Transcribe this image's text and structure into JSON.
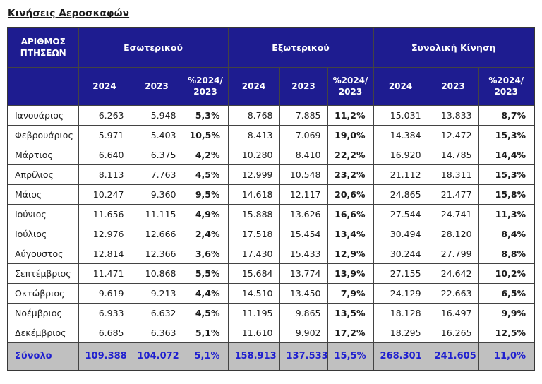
{
  "title": "Κινήσεις Αεροσκαφών",
  "colors": {
    "header_bg": "#1e1c90",
    "header_text": "#ffffff",
    "total_row_bg": "#c0c0c0",
    "total_row_text": "#2020cf",
    "border": "#434343"
  },
  "table": {
    "corner_label": "ΑΡΙΘΜΟΣ\nΠΤΗΣΕΩΝ",
    "groups": [
      "Εσωτερικού",
      "Εξωτερικού",
      "Συνολική Κίνηση"
    ],
    "sub_headers": [
      "2024",
      "2023",
      "%2024/\n2023"
    ],
    "rows": [
      {
        "month": "Ιανουάριος",
        "values": [
          "6.263",
          "5.948",
          "5,3%",
          "8.768",
          "7.885",
          "11,2%",
          "15.031",
          "13.833",
          "8,7%"
        ]
      },
      {
        "month": "Φεβρουάριος",
        "values": [
          "5.971",
          "5.403",
          "10,5%",
          "8.413",
          "7.069",
          "19,0%",
          "14.384",
          "12.472",
          "15,3%"
        ]
      },
      {
        "month": "Μάρτιος",
        "values": [
          "6.640",
          "6.375",
          "4,2%",
          "10.280",
          "8.410",
          "22,2%",
          "16.920",
          "14.785",
          "14,4%"
        ]
      },
      {
        "month": "Απρίλιος",
        "values": [
          "8.113",
          "7.763",
          "4,5%",
          "12.999",
          "10.548",
          "23,2%",
          "21.112",
          "18.311",
          "15,3%"
        ]
      },
      {
        "month": "Μάιος",
        "values": [
          "10.247",
          "9.360",
          "9,5%",
          "14.618",
          "12.117",
          "20,6%",
          "24.865",
          "21.477",
          "15,8%"
        ]
      },
      {
        "month": "Ιούνιος",
        "values": [
          "11.656",
          "11.115",
          "4,9%",
          "15.888",
          "13.626",
          "16,6%",
          "27.544",
          "24.741",
          "11,3%"
        ]
      },
      {
        "month": "Ιούλιος",
        "values": [
          "12.976",
          "12.666",
          "2,4%",
          "17.518",
          "15.454",
          "13,4%",
          "30.494",
          "28.120",
          "8,4%"
        ]
      },
      {
        "month": "Αύγουστος",
        "values": [
          "12.814",
          "12.366",
          "3,6%",
          "17.430",
          "15.433",
          "12,9%",
          "30.244",
          "27.799",
          "8,8%"
        ]
      },
      {
        "month": "Σεπτέμβριος",
        "values": [
          "11.471",
          "10.868",
          "5,5%",
          "15.684",
          "13.774",
          "13,9%",
          "27.155",
          "24.642",
          "10,2%"
        ]
      },
      {
        "month": "Οκτώβριος",
        "values": [
          "9.619",
          "9.213",
          "4,4%",
          "14.510",
          "13.450",
          "7,9%",
          "24.129",
          "22.663",
          "6,5%"
        ]
      },
      {
        "month": "Νοέμβριος",
        "values": [
          "6.933",
          "6.632",
          "4,5%",
          "11.195",
          "9.865",
          "13,5%",
          "18.128",
          "16.497",
          "9,9%"
        ]
      },
      {
        "month": "Δεκέμβριος",
        "values": [
          "6.685",
          "6.363",
          "5,1%",
          "11.610",
          "9.902",
          "17,2%",
          "18.295",
          "16.265",
          "12,5%"
        ]
      }
    ],
    "total": {
      "label": "Σύνολο",
      "values": [
        "109.388",
        "104.072",
        "5,1%",
        "158.913",
        "137.533",
        "15,5%",
        "268.301",
        "241.605",
        "11,0%"
      ]
    }
  }
}
